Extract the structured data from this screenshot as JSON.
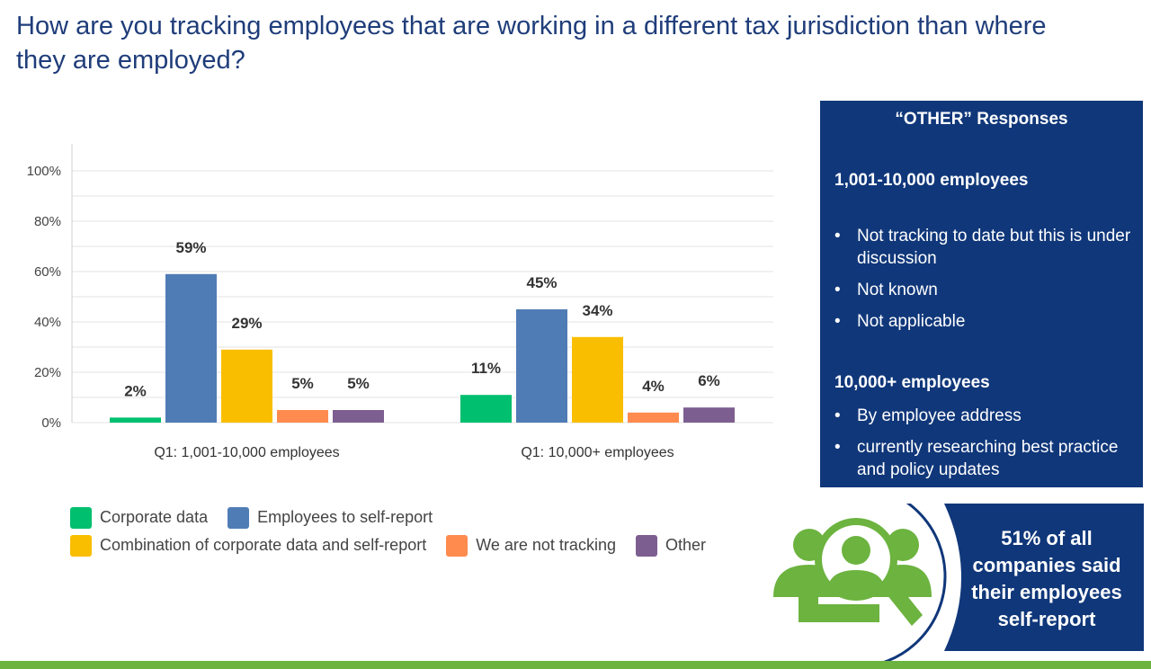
{
  "slide": {
    "title": "How are you tracking employees that are working in a different tax jurisdiction than where they are employed?"
  },
  "chart_data": {
    "type": "bar",
    "categories": [
      "Q1: 1,001-10,000 employees",
      "Q1: 10,000+ employees"
    ],
    "series": [
      {
        "name": "Corporate data",
        "values": [
          2,
          11
        ],
        "labels": [
          "2%",
          "11%"
        ],
        "color": "#00bf6f"
      },
      {
        "name": "Employees to self-report",
        "values": [
          59,
          45
        ],
        "labels": [
          "59%",
          "45%"
        ],
        "color": "#507cb6"
      },
      {
        "name": "Combination of corporate data and self-report",
        "values": [
          29,
          34
        ],
        "labels": [
          "29%",
          "34%"
        ],
        "color": "#f9be00"
      },
      {
        "name": "We are not tracking",
        "values": [
          5,
          4
        ],
        "labels": [
          "5%",
          "4%"
        ],
        "color": "#ff8b4f"
      },
      {
        "name": "Other",
        "values": [
          5,
          6
        ],
        "labels": [
          "5%",
          "6%"
        ],
        "color": "#7d5e90"
      }
    ],
    "y_ticks": [
      "0%",
      "20%",
      "40%",
      "60%",
      "80%",
      "100%"
    ],
    "ylim": [
      0,
      100
    ],
    "grid": true,
    "legend_position": "bottom"
  },
  "other_box": {
    "title": "“OTHER” Responses",
    "groups": [
      {
        "heading": "1,001-10,000 employees",
        "items": [
          "Not tracking to date but this is under discussion",
          "Not known",
          "Not applicable"
        ]
      },
      {
        "heading": "10,000+ employees",
        "items": [
          "By employee address",
          "currently researching best practice and policy updates"
        ]
      }
    ]
  },
  "stat": {
    "text": "51% of all companies said their employees self-report",
    "icon": "people-magnifier-icon"
  },
  "colors": {
    "title": "#1f3d7a",
    "panel": "#10377a",
    "accent_green": "#6cb33f"
  }
}
